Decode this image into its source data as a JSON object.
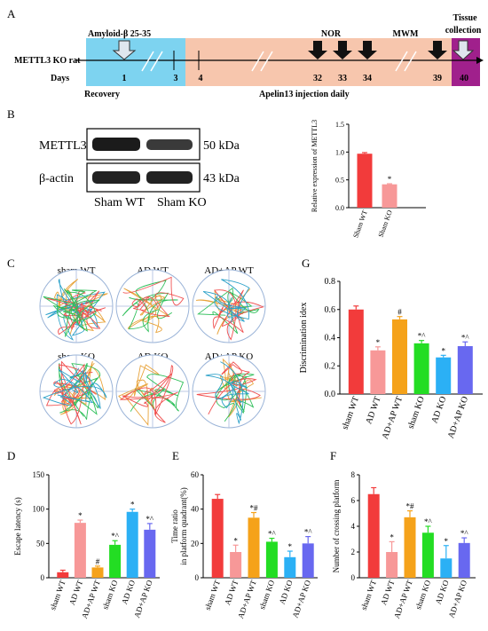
{
  "panels": [
    "A",
    "B",
    "C",
    "D",
    "E",
    "F",
    "G"
  ],
  "timeline": {
    "rat_label": "METTL3 KO rat",
    "days_label": "Days",
    "amyloid_label": "Amyloid-β 25-35",
    "recovery_label": "Recovery",
    "apelin_label": "Apelin13 injection daily",
    "nor_label": "NOR",
    "mwm_label": "MWM",
    "tissue_label_1": "Tissue",
    "tissue_label_2": "collection",
    "day_labels": [
      "1",
      "3",
      "4",
      "32",
      "33",
      "34",
      "39",
      "40"
    ],
    "colors": {
      "recovery": "#7dd3f0",
      "apelin": "#f7c6ad",
      "tissue": "#a0208c"
    }
  },
  "blot": {
    "rows": [
      {
        "protein": "METTL3",
        "size": "50 kDa"
      },
      {
        "protein": "β-actin",
        "size": "43 kDa"
      }
    ],
    "lanes": [
      "Sham WT",
      "Sham KO"
    ]
  },
  "trajectories": {
    "labels": [
      "sham WT",
      "AD WT",
      "AD+AP WT",
      "sham KO",
      "AD KO",
      "AD+AP KO"
    ]
  },
  "chart_data": [
    {
      "id": "B",
      "type": "bar",
      "categories": [
        "Sham WT",
        "Sham KO"
      ],
      "values": [
        0.97,
        0.42
      ],
      "errors": [
        0.02,
        0.01
      ],
      "markers": [
        "",
        "*"
      ],
      "colors": [
        "#f23b3b",
        "#f79898"
      ],
      "ylabel": "Relative expression of METTL3",
      "ylim": [
        0,
        1.5
      ],
      "yticks": [
        0,
        0.5,
        1.0,
        1.5
      ],
      "ytick_labels": [
        "0.0",
        "0.5",
        "1.0",
        "1.5"
      ]
    },
    {
      "id": "G",
      "type": "bar",
      "categories": [
        "sham WT",
        "AD WT",
        "AD+AP WT",
        "sham KO",
        "AD KO",
        "AD+AP KO"
      ],
      "values": [
        0.6,
        0.31,
        0.53,
        0.36,
        0.26,
        0.34
      ],
      "errors": [
        0.025,
        0.025,
        0.02,
        0.02,
        0.015,
        0.03
      ],
      "markers": [
        "",
        "*",
        "#",
        "*^",
        "*",
        "*^"
      ],
      "colors": [
        "#f23b3b",
        "#f79898",
        "#f5a21a",
        "#23dd23",
        "#2bb0f5",
        "#6868f0"
      ],
      "ylabel": "Discrimination idex",
      "ylim": [
        0,
        0.8
      ],
      "yticks": [
        0,
        0.2,
        0.4,
        0.6,
        0.8
      ],
      "ytick_labels": [
        "0.0",
        "0.2",
        "0.4",
        "0.6",
        "0.8"
      ]
    },
    {
      "id": "D",
      "type": "bar",
      "categories": [
        "sham WT",
        "AD WT",
        "AD+AP WT",
        "sham KO",
        "AD KO",
        "AD+AP KO"
      ],
      "values": [
        8,
        80,
        15,
        48,
        96,
        70
      ],
      "errors": [
        3,
        4,
        2,
        6,
        4,
        9
      ],
      "markers": [
        "",
        "*",
        "#",
        "*^",
        "*",
        "*^"
      ],
      "colors": [
        "#f23b3b",
        "#f79898",
        "#f5a21a",
        "#23dd23",
        "#2bb0f5",
        "#6868f0"
      ],
      "ylabel": "Escape latency (s)",
      "ylim": [
        0,
        150
      ],
      "yticks": [
        0,
        50,
        100,
        150
      ],
      "ytick_labels": [
        "0",
        "50",
        "100",
        "150"
      ]
    },
    {
      "id": "E",
      "type": "bar",
      "categories": [
        "sham WT",
        "AD WT",
        "AD+AP WT",
        "sham KO",
        "AD KO",
        "AD+AP KO"
      ],
      "values": [
        46,
        15,
        35,
        21,
        12,
        20
      ],
      "errors": [
        2.5,
        4,
        3,
        2,
        3.5,
        4
      ],
      "markers": [
        "",
        "*",
        "*#",
        "*^",
        "*",
        "*^"
      ],
      "colors": [
        "#f23b3b",
        "#f79898",
        "#f5a21a",
        "#23dd23",
        "#2bb0f5",
        "#6868f0"
      ],
      "ylabel": "Time ratio in platform quadrant(%)",
      "ylabel_lines": [
        "Time ratio",
        "in platform quadrant(%)"
      ],
      "ylim": [
        0,
        60
      ],
      "yticks": [
        0,
        20,
        40,
        60
      ],
      "ytick_labels": [
        "0",
        "20",
        "40",
        "60"
      ]
    },
    {
      "id": "F",
      "type": "bar",
      "categories": [
        "sham WT",
        "AD WT",
        "AD+AP WT",
        "sham KO",
        "AD KO",
        "AD+AP KO"
      ],
      "values": [
        6.5,
        2.0,
        4.7,
        3.5,
        1.5,
        2.7
      ],
      "errors": [
        0.5,
        0.8,
        0.5,
        0.5,
        1.0,
        0.4
      ],
      "markers": [
        "",
        "*",
        "*#",
        "*^",
        "*",
        "*^"
      ],
      "colors": [
        "#f23b3b",
        "#f79898",
        "#f5a21a",
        "#23dd23",
        "#2bb0f5",
        "#6868f0"
      ],
      "ylabel": "Number of crossing platform",
      "ylim": [
        0,
        8
      ],
      "yticks": [
        0,
        2,
        4,
        6,
        8
      ],
      "ytick_labels": [
        "0",
        "2",
        "4",
        "6",
        "8"
      ]
    }
  ]
}
